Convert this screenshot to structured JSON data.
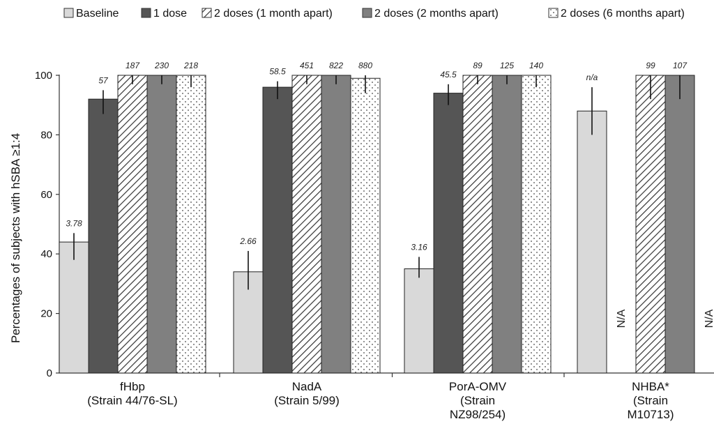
{
  "chart_data": {
    "type": "bar",
    "title": "",
    "xlabel": "",
    "ylabel": "Percentages of subjects with hSBA ≥1:4",
    "ylim": [
      0,
      100
    ],
    "yticks": [
      0,
      20,
      40,
      60,
      80,
      100
    ],
    "grid": false,
    "legend_position": "top",
    "categories": [
      [
        "fHbp",
        "(Strain 44/76-SL)"
      ],
      [
        "NadA",
        "(Strain 5/99)"
      ],
      [
        "PorA-OMV",
        "(Strain",
        "NZ98/254)"
      ],
      [
        "NHBA*",
        "(Strain",
        "M10713)"
      ]
    ],
    "series": [
      {
        "name": "Baseline",
        "pattern": "solid",
        "color": "#d9d9d9",
        "values": [
          44,
          34,
          35,
          88
        ],
        "err_low": [
          38,
          28,
          32,
          80
        ],
        "err_high": [
          47,
          41,
          39,
          96
        ],
        "labels": [
          "3.78",
          "2.66",
          "3.16",
          "n/a"
        ]
      },
      {
        "name": "1 dose",
        "pattern": "solid",
        "color": "#555555",
        "values": [
          92,
          96,
          94,
          null
        ],
        "err_low": [
          87,
          92,
          90,
          null
        ],
        "err_high": [
          95,
          98,
          97,
          null
        ],
        "labels": [
          "57",
          "58.5",
          "45.5",
          "N/A"
        ]
      },
      {
        "name": "2 doses (1 month apart)",
        "pattern": "hatch",
        "color": "#ffffff",
        "values": [
          100,
          100,
          100,
          100
        ],
        "err_low": [
          97,
          97,
          97,
          92
        ],
        "err_high": [
          100,
          100,
          100,
          100
        ],
        "labels": [
          "187",
          "451",
          "89",
          "99"
        ]
      },
      {
        "name": "2 doses (2 months apart)",
        "pattern": "solid",
        "color": "#808080",
        "values": [
          100,
          100,
          100,
          100
        ],
        "err_low": [
          97,
          97,
          97,
          92
        ],
        "err_high": [
          100,
          100,
          100,
          100
        ],
        "labels": [
          "230",
          "822",
          "125",
          "107"
        ]
      },
      {
        "name": "2 doses (6 months apart)",
        "pattern": "dots",
        "color": "#ffffff",
        "values": [
          100,
          99,
          100,
          null
        ],
        "err_low": [
          96,
          94,
          96,
          null
        ],
        "err_high": [
          100,
          100,
          100,
          null
        ],
        "labels": [
          "218",
          "880",
          "140",
          "N/A"
        ]
      }
    ]
  }
}
